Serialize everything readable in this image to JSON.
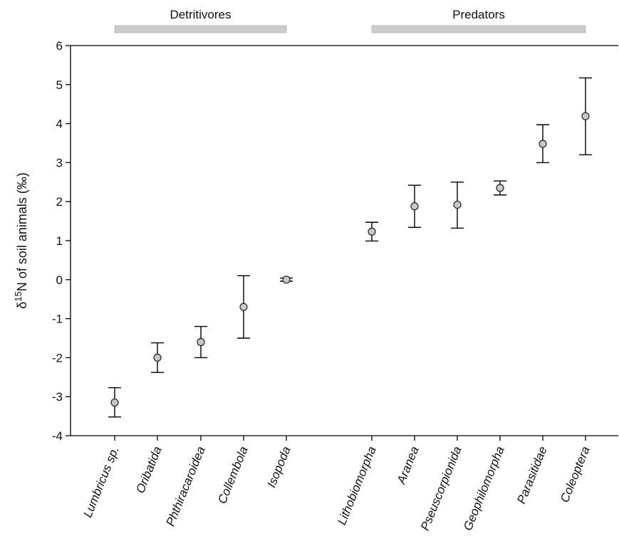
{
  "chart_data": {
    "type": "scatter",
    "ylabel": {
      "prefix": "δ",
      "superscript": "15",
      "main": "N of soil animals (‰)"
    },
    "ylim": [
      -4,
      6
    ],
    "yticks": [
      6,
      5,
      4,
      3,
      2,
      1,
      0,
      -1,
      -2,
      -3,
      -4
    ],
    "groups": [
      {
        "label": "Detritivores",
        "from": "Lumbricus sp.",
        "to": "Isopoda"
      },
      {
        "label": "Predators",
        "from": "Lithobiomorpha",
        "to": "Coleoptera"
      }
    ],
    "categories": [
      "Lumbricus sp.",
      "Oribatida",
      "Phthiracaroidea",
      "Collembola",
      "Isopoda",
      "Lithobiomorpha",
      "Aranea",
      "Pseuscorpionida",
      "Geophilomorpha",
      "Parasitidae",
      "Coleoptera"
    ],
    "series": [
      {
        "values": [
          -3.15,
          -2.0,
          -1.6,
          -0.7,
          0.0,
          1.23,
          1.88,
          1.92,
          2.35,
          3.48,
          4.19
        ],
        "error_upper": [
          -2.77,
          -1.62,
          -1.2,
          0.1,
          0.04,
          1.47,
          2.42,
          2.5,
          2.53,
          3.97,
          5.17
        ],
        "error_lower": [
          -3.52,
          -2.38,
          -2.0,
          -1.5,
          -0.04,
          0.99,
          1.34,
          1.32,
          2.17,
          3.0,
          3.2
        ]
      }
    ],
    "grid": false,
    "marker_color": "#c8c8c8",
    "group_bar_color": "#cccccc"
  }
}
